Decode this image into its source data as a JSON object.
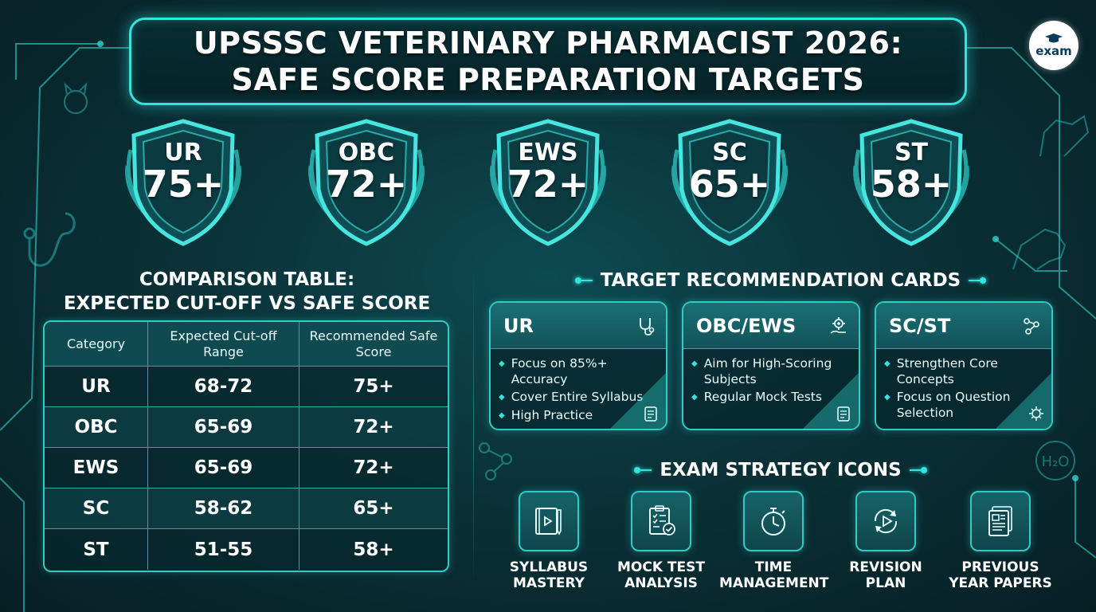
{
  "title": {
    "line1": "UPSSSC VETERINARY PHARMACIST 2026:",
    "line2": "SAFE SCORE PREPARATION TARGETS"
  },
  "logo": {
    "text": "exam",
    "icon": "graduation-cap-icon"
  },
  "shields": [
    {
      "category": "UR",
      "score": "75+"
    },
    {
      "category": "OBC",
      "score": "72+"
    },
    {
      "category": "EWS",
      "score": "72+"
    },
    {
      "category": "SC",
      "score": "65+"
    },
    {
      "category": "ST",
      "score": "58+"
    }
  ],
  "comparison": {
    "title_line1": "COMPARISON TABLE:",
    "title_line2": "EXPECTED CUT-OFF VS SAFE SCORE",
    "headers": [
      "Category",
      "Expected Cut-off Range",
      "Recommended Safe Score"
    ],
    "rows": [
      [
        "UR",
        "68-72",
        "75+"
      ],
      [
        "OBC",
        "65-69",
        "72+"
      ],
      [
        "EWS",
        "65-69",
        "72+"
      ],
      [
        "SC",
        "58-62",
        "65+"
      ],
      [
        "ST",
        "51-55",
        "58+"
      ]
    ]
  },
  "cards_section": {
    "title": "TARGET RECOMMENDATION CARDS"
  },
  "cards": [
    {
      "title": "UR",
      "icon": "stethoscope-icon",
      "items": [
        "Focus on 85%+ Accuracy",
        "Cover Entire Syllabus",
        "High Practice"
      ]
    },
    {
      "title": "OBC/EWS",
      "icon": "gear-hand-icon",
      "items": [
        "Aim for High-Scoring Subjects",
        "Regular Mock Tests"
      ]
    },
    {
      "title": "SC/ST",
      "icon": "molecule-icon",
      "items": [
        "Strengthen Core Concepts",
        "Focus on Question Selection"
      ]
    }
  ],
  "strategy_section": {
    "title": "EXAM STRATEGY ICONS"
  },
  "strategies": [
    {
      "label_line1": "SYLLABUS",
      "label_line2": "MASTERY",
      "icon": "book-icon"
    },
    {
      "label_line1": "MOCK TEST",
      "label_line2": "ANALYSIS",
      "icon": "clipboard-check-icon"
    },
    {
      "label_line1": "TIME",
      "label_line2": "MANAGEMENT",
      "icon": "stopwatch-icon"
    },
    {
      "label_line1": "REVISION",
      "label_line2": "PLAN",
      "icon": "refresh-play-icon"
    },
    {
      "label_line1": "PREVIOUS",
      "label_line2": "YEAR PAPERS",
      "icon": "papers-icon"
    }
  ],
  "colors": {
    "accent": "#35e3de",
    "background": "#0a3238",
    "panel": "#115359"
  }
}
